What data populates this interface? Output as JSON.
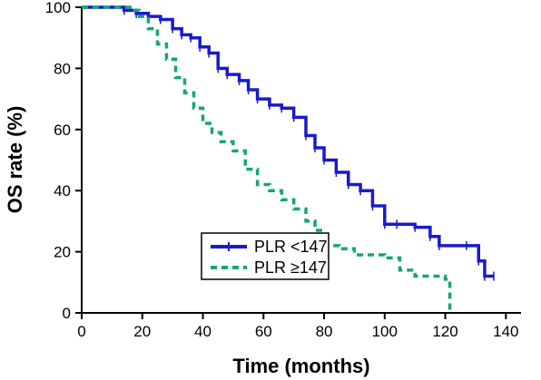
{
  "chart_data": {
    "type": "line",
    "subtype": "kaplan-meier step curve",
    "title": "",
    "xlabel": "Time (months)",
    "ylabel": "OS rate (%)",
    "xlim": [
      0,
      145
    ],
    "ylim": [
      0,
      100
    ],
    "xticks": [
      0,
      20,
      40,
      60,
      80,
      100,
      120,
      140
    ],
    "yticks": [
      0,
      20,
      40,
      60,
      80,
      100
    ],
    "grid": false,
    "legend_position": "bottom-left",
    "series": [
      {
        "name": "PLR <147",
        "color": "#1a1acc",
        "line_style": "solid",
        "x": [
          0,
          14,
          18,
          22,
          26,
          30,
          33,
          36,
          39,
          42,
          45,
          48,
          52,
          55,
          58,
          62,
          66,
          70,
          74,
          77,
          80,
          84,
          88,
          92,
          96,
          100,
          104,
          110,
          115,
          118,
          127,
          131,
          133,
          136
        ],
        "y": [
          100,
          99,
          98,
          97,
          96,
          93,
          91,
          90,
          87,
          85,
          80,
          78,
          76,
          73,
          70,
          68,
          67,
          64,
          58,
          54,
          50,
          46,
          42,
          40,
          35,
          29,
          29,
          28,
          25,
          22,
          22,
          17,
          12,
          12
        ]
      },
      {
        "name": "PLR ≥147",
        "color": "#17a673",
        "line_style": "dashed",
        "x": [
          0,
          16,
          19,
          22,
          25,
          28,
          31,
          34,
          37,
          40,
          43,
          46,
          50,
          54,
          58,
          62,
          66,
          70,
          74,
          77,
          80,
          85,
          90,
          95,
          100,
          105,
          110,
          115,
          120,
          121,
          121.5
        ],
        "y": [
          100,
          99,
          97,
          93,
          88,
          83,
          77,
          72,
          67,
          62,
          59,
          56,
          53,
          47,
          42,
          40,
          37,
          34,
          30,
          27,
          22,
          21,
          19,
          19,
          18,
          14,
          12,
          12,
          11,
          11,
          0
        ]
      }
    ]
  }
}
